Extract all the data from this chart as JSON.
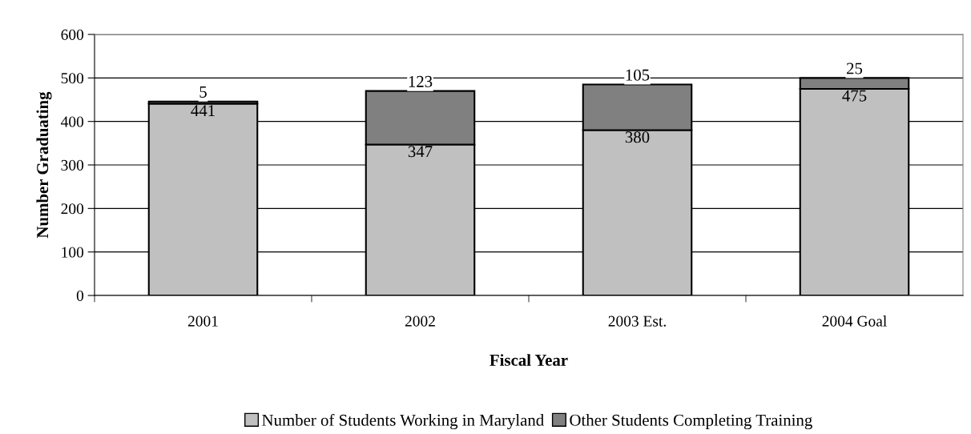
{
  "chart_data": {
    "type": "bar",
    "stacked": true,
    "xlabel": "Fiscal Year",
    "ylabel": "Number Graduating",
    "categories": [
      "2001",
      "2002",
      "2003 Est.",
      "2004 Goal"
    ],
    "series": [
      {
        "name": "Number of Students Working in Maryland",
        "color": "#c0c0c0",
        "values": [
          441,
          347,
          380,
          475
        ]
      },
      {
        "name": "Other Students Completing Training",
        "color": "#808080",
        "values": [
          5,
          123,
          105,
          25
        ]
      }
    ],
    "ylim": [
      0,
      600
    ],
    "yticks": [
      0,
      100,
      200,
      300,
      400,
      500,
      600
    ],
    "grid": "y",
    "legend": "bottom",
    "data_labels": true
  }
}
